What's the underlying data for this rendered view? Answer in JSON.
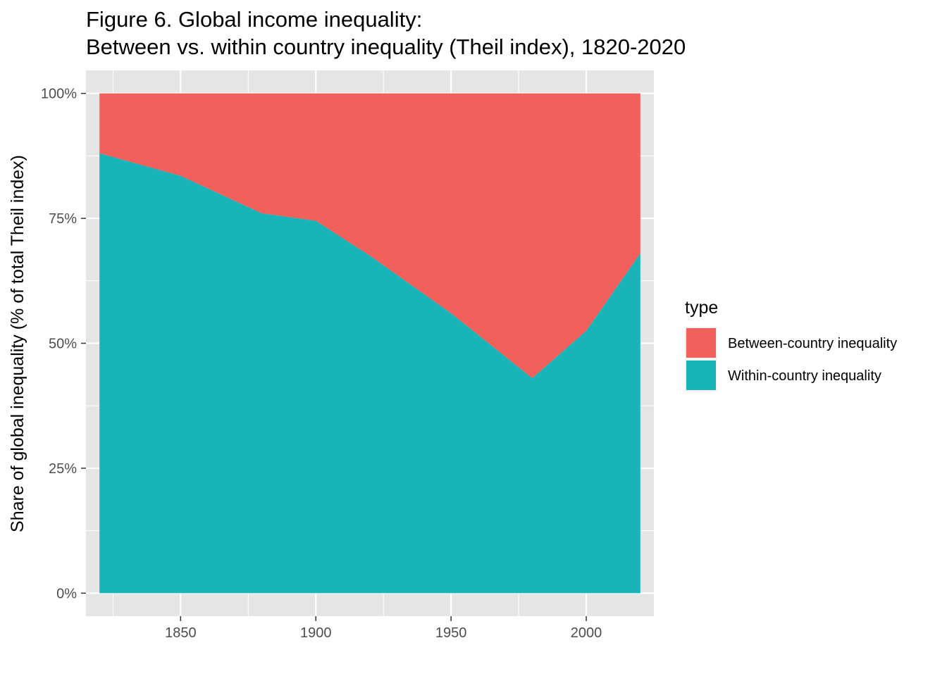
{
  "chart_data": {
    "type": "area",
    "stacked": true,
    "percent": true,
    "title_line1": "Figure 6. Global income inequality:",
    "title_line2": "Between vs. within country inequality (Theil index), 1820-2020",
    "ylabel": "Share of global inequality (% of total Theil index)",
    "xlabel": "",
    "xlim": [
      1815,
      2025
    ],
    "ylim": [
      -0.046,
      1.046
    ],
    "x_ticks": [
      1850,
      1900,
      1950,
      2000
    ],
    "x_tick_labels": [
      "1850",
      "1900",
      "1950",
      "2000"
    ],
    "y_ticks": [
      0,
      0.25,
      0.5,
      0.75,
      1.0
    ],
    "y_tick_labels": [
      "0%",
      "25%",
      "50%",
      "75%",
      "100%"
    ],
    "x": [
      1820,
      1850,
      1880,
      1900,
      1920,
      1950,
      1980,
      2000,
      2020
    ],
    "series": [
      {
        "name": "Within-country inequality",
        "color": "#19B4B7",
        "values": [
          0.88,
          0.835,
          0.76,
          0.745,
          0.675,
          0.56,
          0.43,
          0.525,
          0.68
        ]
      },
      {
        "name": "Between-country inequality",
        "color": "#F2605C",
        "values": [
          0.12,
          0.165,
          0.24,
          0.255,
          0.325,
          0.44,
          0.57,
          0.475,
          0.32
        ]
      }
    ],
    "legend": {
      "title": "type",
      "position": "right",
      "entries": [
        "Between-country inequality",
        "Within-country inequality"
      ]
    },
    "grid": true,
    "panel_background": "#E5E5E5",
    "grid_color": "#FFFFFF"
  }
}
